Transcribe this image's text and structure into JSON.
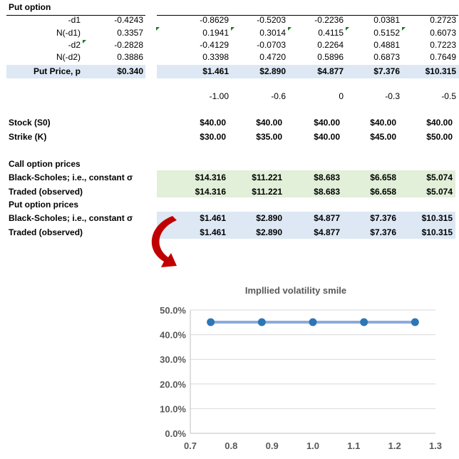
{
  "put_table": {
    "title": "Put option",
    "left_rows": [
      {
        "label": "-d1",
        "value": "-0.4243"
      },
      {
        "label": "N(-d1)",
        "value": "0.3357"
      },
      {
        "label": "-d2",
        "value": "-0.2828"
      },
      {
        "label": "N(-d2)",
        "value": "0.3886"
      },
      {
        "label": "Put Price, p",
        "value": "$0.340"
      }
    ],
    "right_rows": [
      [
        "-0.8629",
        "-0.5203",
        "-0.2236",
        "0.0381",
        "0.2723"
      ],
      [
        "0.1941",
        "0.3014",
        "0.4115",
        "0.5152",
        "0.6073"
      ],
      [
        "-0.4129",
        "-0.0703",
        "0.2264",
        "0.4881",
        "0.7223"
      ],
      [
        "0.3398",
        "0.4720",
        "0.5896",
        "0.6873",
        "0.7649"
      ],
      [
        "$1.461",
        "$2.890",
        "$4.877",
        "$7.376",
        "$10.315"
      ]
    ]
  },
  "misc_row": [
    "-1.00",
    "-0.6",
    "0",
    "-0.3",
    "-0.5"
  ],
  "inputs": [
    {
      "label": "Stock (S0)",
      "values": [
        "$40.00",
        "$40.00",
        "$40.00",
        "$40.00",
        "$40.00"
      ]
    },
    {
      "label": "Strike (K)",
      "values": [
        "$30.00",
        "$35.00",
        "$40.00",
        "$45.00",
        "$50.00"
      ]
    }
  ],
  "call_prices": {
    "title": "Call option prices",
    "rows": [
      {
        "label": "Black-Scholes; i.e., constant σ",
        "values": [
          "$14.316",
          "$11.221",
          "$8.683",
          "$6.658",
          "$5.074"
        ]
      },
      {
        "label": "Traded (observed)",
        "values": [
          "$14.316",
          "$11.221",
          "$8.683",
          "$6.658",
          "$5.074"
        ]
      }
    ]
  },
  "put_prices": {
    "title": "Put option prices",
    "rows": [
      {
        "label": "Black-Scholes; i.e., constant σ",
        "values": [
          "$1.461",
          "$2.890",
          "$4.877",
          "$7.376",
          "$10.315"
        ]
      },
      {
        "label": "Traded (observed)",
        "values": [
          "$1.461",
          "$2.890",
          "$4.877",
          "$7.376",
          "$10.315"
        ]
      }
    ]
  },
  "colors": {
    "put_band": "#dde8f4",
    "call_band": "#e2efd9",
    "series": "#2e75b6",
    "series_line": "#8eaadb",
    "arrow": "#c00000"
  },
  "chart_data": {
    "type": "line",
    "title": "Impllied volatility smile",
    "x": [
      0.75,
      0.875,
      1.0,
      1.125,
      1.25
    ],
    "y": [
      0.451,
      0.451,
      0.451,
      0.451,
      0.451
    ],
    "xlim": [
      0.7,
      1.3
    ],
    "ylim": [
      0,
      0.5
    ],
    "x_ticks": [
      "0.7",
      "0.8",
      "0.9",
      "1.0",
      "1.1",
      "1.2",
      "1.3"
    ],
    "y_ticks": [
      "0.0%",
      "10.0%",
      "20.0%",
      "30.0%",
      "40.0%",
      "50.0%"
    ],
    "grid": true,
    "markers": true
  }
}
